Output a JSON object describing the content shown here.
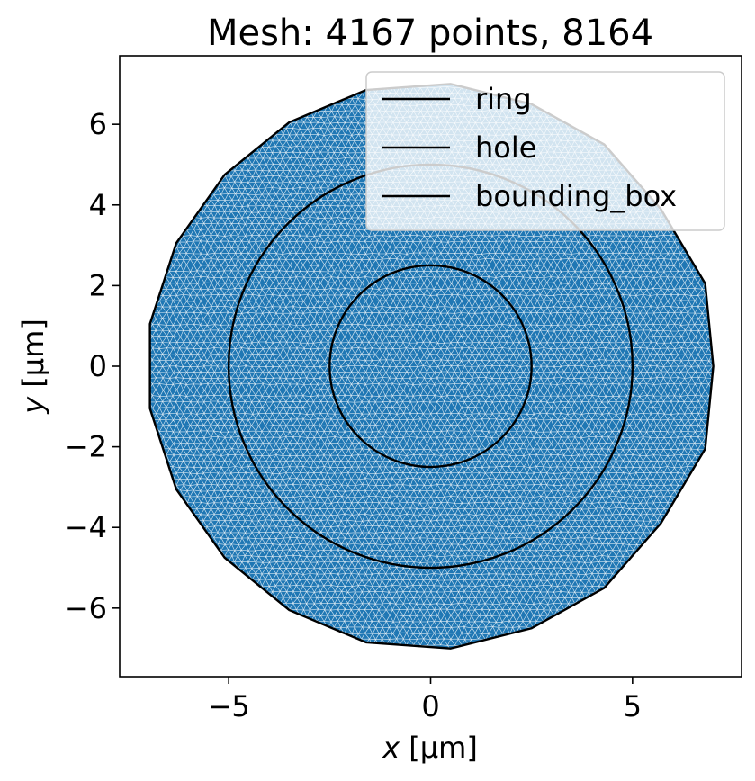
{
  "chart_data": {
    "type": "mesh",
    "title": "Mesh: 4167 points, 8164",
    "xlabel_var": "x",
    "xlabel_unit": " [µm]",
    "ylabel_var": "y",
    "ylabel_unit": " [µm]",
    "xlim": [
      -7.7,
      7.7
    ],
    "ylim": [
      -7.7,
      7.7
    ],
    "xticks": [
      -5,
      0,
      5
    ],
    "xtick_labels": [
      "−5",
      "0",
      "5"
    ],
    "yticks": [
      -6,
      -4,
      -2,
      0,
      2,
      4,
      6
    ],
    "ytick_labels": [
      "−6",
      "−4",
      "−2",
      "0",
      "2",
      "4",
      "6"
    ],
    "grid": false,
    "legend_position": "upper-right",
    "legend": [
      "ring",
      "hole",
      "bounding_box"
    ],
    "mesh": {
      "color": "#1f77b4",
      "num_points": 4167,
      "num_triangles": 8164,
      "triangle_size": 0.17
    },
    "polygons": [
      {
        "name": "bounding_box",
        "color": "#000000",
        "points": [
          [
            7.0,
            0.0
          ],
          [
            6.8,
            2.05
          ],
          [
            5.7,
            3.9
          ],
          [
            4.3,
            5.5
          ],
          [
            2.5,
            6.5
          ],
          [
            0.5,
            7.0
          ],
          [
            -1.6,
            6.85
          ],
          [
            -3.5,
            6.05
          ],
          [
            -5.1,
            4.75
          ],
          [
            -6.3,
            3.05
          ],
          [
            -6.95,
            1.05
          ],
          [
            -6.95,
            -1.05
          ],
          [
            -6.3,
            -3.05
          ],
          [
            -5.1,
            -4.75
          ],
          [
            -3.5,
            -6.05
          ],
          [
            -1.6,
            -6.85
          ],
          [
            0.5,
            -7.0
          ],
          [
            2.5,
            -6.5
          ],
          [
            4.3,
            -5.5
          ],
          [
            5.7,
            -3.9
          ],
          [
            6.8,
            -2.05
          ]
        ]
      }
    ],
    "circles": [
      {
        "name": "ring",
        "radius": 5.0,
        "color": "#000000"
      },
      {
        "name": "hole",
        "radius": 2.5,
        "color": "#000000"
      }
    ]
  }
}
